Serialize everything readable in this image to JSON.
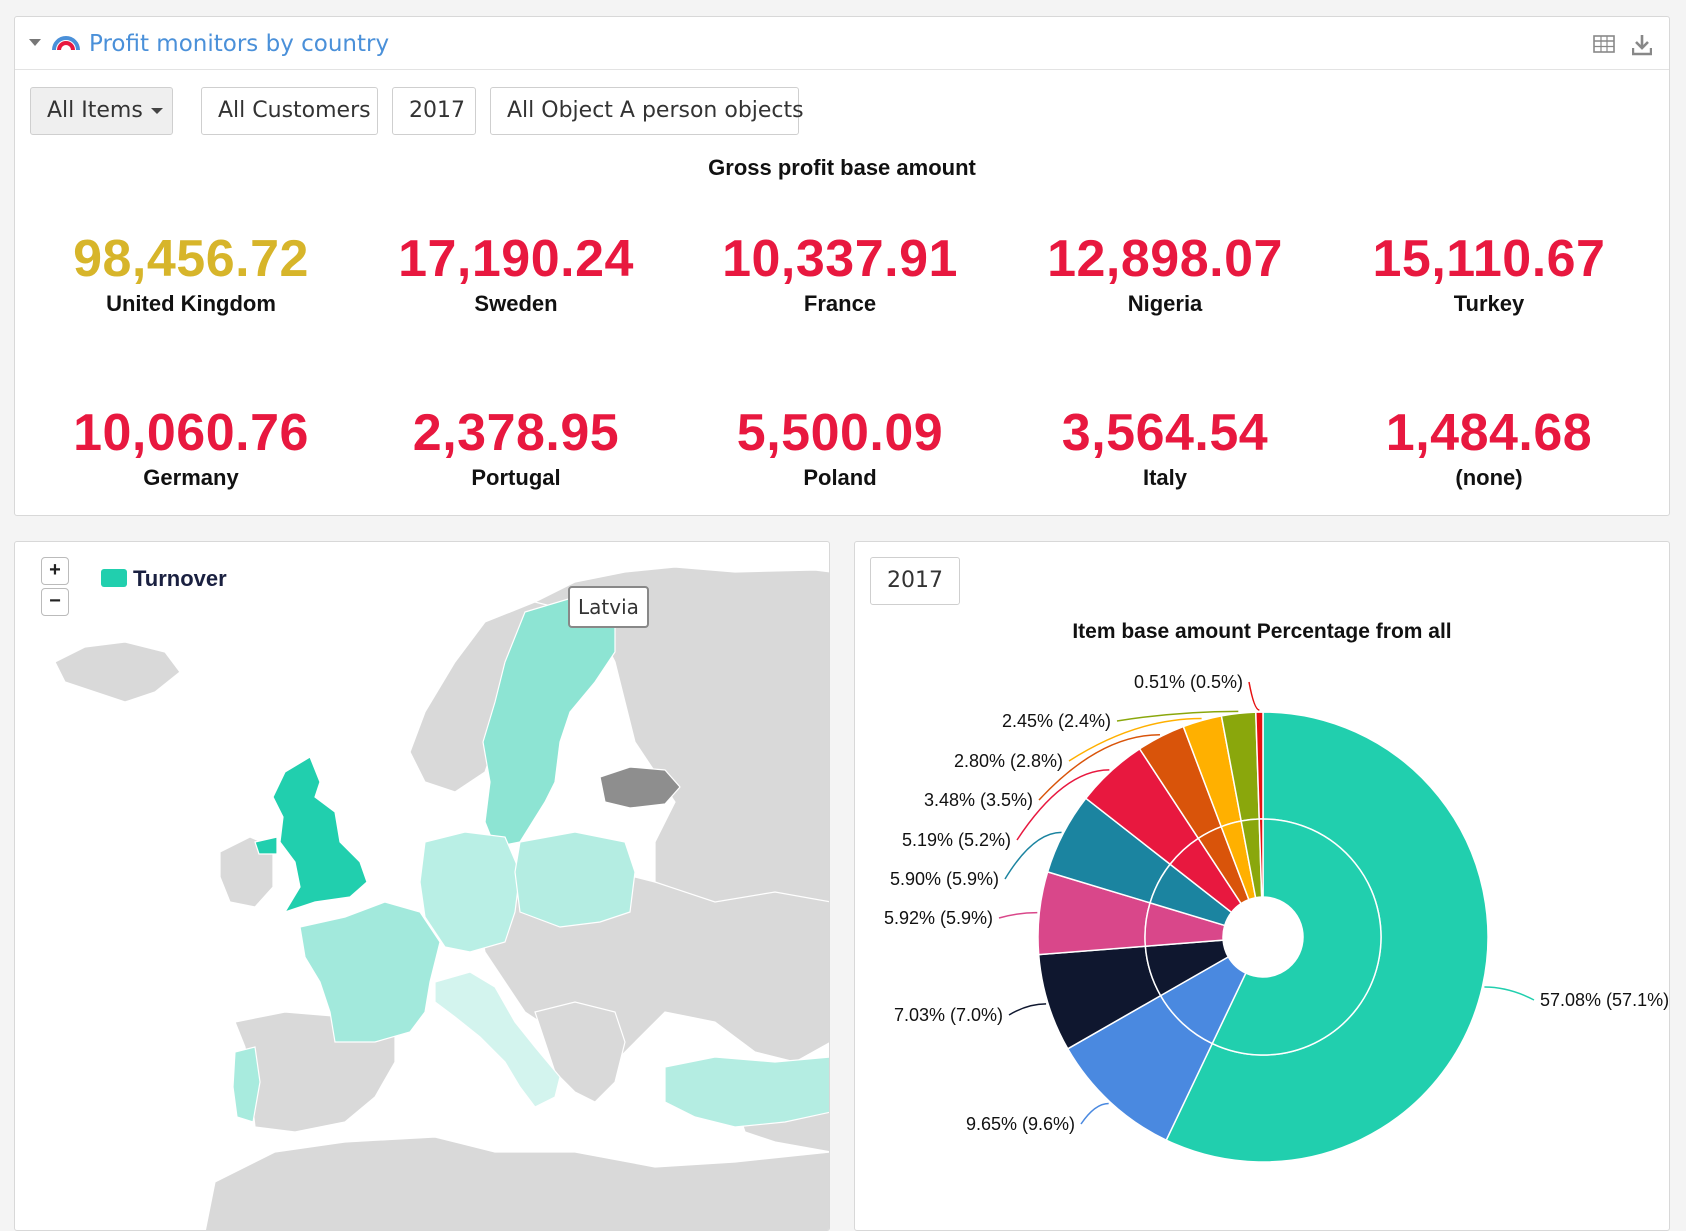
{
  "header": {
    "title": "Profit monitors by country",
    "logo_icon": "rainbow-logo-icon",
    "table_icon": "table-icon",
    "download_icon": "download-icon"
  },
  "filters": [
    {
      "label": "All Items",
      "has_dropdown": true
    },
    {
      "label": "All Customers"
    },
    {
      "label": "2017"
    },
    {
      "label": "All Object A person objects"
    }
  ],
  "kpis": {
    "title": "Gross profit base amount",
    "items": [
      {
        "value": "98,456.72",
        "label": "United Kingdom",
        "color": "#d7b52a"
      },
      {
        "value": "17,190.24",
        "label": "Sweden",
        "color": "#e8183f"
      },
      {
        "value": "10,337.91",
        "label": "France",
        "color": "#e8183f"
      },
      {
        "value": "12,898.07",
        "label": "Nigeria",
        "color": "#e8183f"
      },
      {
        "value": "15,110.67",
        "label": "Turkey",
        "color": "#e8183f"
      },
      {
        "value": "10,060.76",
        "label": "Germany",
        "color": "#e8183f"
      },
      {
        "value": "2,378.95",
        "label": "Portugal",
        "color": "#e8183f"
      },
      {
        "value": "5,500.09",
        "label": "Poland",
        "color": "#e8183f"
      },
      {
        "value": "3,564.54",
        "label": "Italy",
        "color": "#e8183f"
      },
      {
        "value": "1,484.68",
        "label": "(none)",
        "color": "#e8183f"
      }
    ]
  },
  "map": {
    "zoom_in": "+",
    "zoom_out": "−",
    "legend_label": "Turnover",
    "legend_color": "#21cfae",
    "tooltip": "Latvia",
    "highlighted_countries": [
      "United Kingdom",
      "Sweden",
      "France",
      "Germany",
      "Poland",
      "Italy",
      "Portugal",
      "Turkey"
    ],
    "hovered_country": "Latvia"
  },
  "pie_panel": {
    "year": "2017"
  },
  "chart_data": {
    "type": "pie",
    "title": "Item base amount Percentage from all",
    "style": "donut with inner ring",
    "slices": [
      {
        "value": 57.08,
        "label": "57.08% (57.1%)",
        "color": "#21cfae"
      },
      {
        "value": 9.65,
        "label": "9.65% (9.6%)",
        "color": "#4a89e0"
      },
      {
        "value": 7.03,
        "label": "7.03% (7.0%)",
        "color": "#0f172f"
      },
      {
        "value": 5.92,
        "label": "5.92% (5.9%)",
        "color": "#d9478a"
      },
      {
        "value": 5.9,
        "label": "5.90% (5.9%)",
        "color": "#1b84a0"
      },
      {
        "value": 5.19,
        "label": "5.19% (5.2%)",
        "color": "#e8183f"
      },
      {
        "value": 3.48,
        "label": "3.48% (3.5%)",
        "color": "#d9540a"
      },
      {
        "value": 2.8,
        "label": "2.80% (2.8%)",
        "color": "#ffb000"
      },
      {
        "value": 2.45,
        "label": "2.45% (2.4%)",
        "color": "#8aa70c"
      },
      {
        "value": 0.51,
        "label": "0.51% (0.5%)",
        "color": "#e61010"
      }
    ]
  }
}
